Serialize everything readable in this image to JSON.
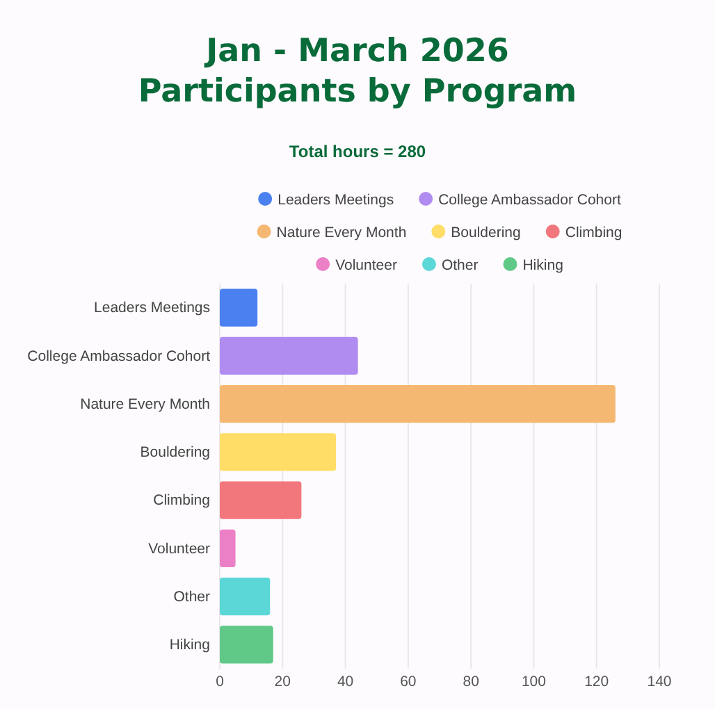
{
  "chart_data": {
    "type": "bar",
    "orientation": "horizontal",
    "title": "Jan - March 2026\nParticipants by Program",
    "subtitle": "Total hours = 280",
    "categories": [
      "Leaders Meetings",
      "College Ambassador Cohort",
      "Nature Every Month",
      "Bouldering",
      "Climbing",
      "Volunteer",
      "Other",
      "Hiking"
    ],
    "series": [
      {
        "name": "Leaders Meetings",
        "color": "#4a80f0",
        "values": [
          12,
          null,
          null,
          null,
          null,
          null,
          null,
          null
        ]
      },
      {
        "name": "College Ambassador Cohort",
        "color": "#b08cf0",
        "values": [
          null,
          44,
          null,
          null,
          null,
          null,
          null,
          null
        ]
      },
      {
        "name": "Nature Every Month",
        "color": "#f4b872",
        "values": [
          null,
          null,
          126,
          null,
          null,
          null,
          null,
          null
        ]
      },
      {
        "name": "Bouldering",
        "color": "#ffdd66",
        "values": [
          null,
          null,
          null,
          37,
          null,
          null,
          null,
          null
        ]
      },
      {
        "name": "Climbing",
        "color": "#f2777d",
        "values": [
          null,
          null,
          null,
          null,
          26,
          null,
          null,
          null
        ]
      },
      {
        "name": "Volunteer",
        "color": "#ec80c6",
        "values": [
          null,
          null,
          null,
          null,
          null,
          5,
          null,
          null
        ]
      },
      {
        "name": "Other",
        "color": "#5cd7d7",
        "values": [
          null,
          null,
          null,
          null,
          null,
          null,
          16,
          null
        ]
      },
      {
        "name": "Hiking",
        "color": "#60c987",
        "values": [
          null,
          null,
          null,
          null,
          null,
          null,
          null,
          17
        ]
      }
    ],
    "xlim": [
      0,
      140
    ],
    "xticks": [
      0,
      20,
      40,
      60,
      80,
      100,
      120,
      140
    ],
    "grid": "x",
    "legend": "top"
  }
}
